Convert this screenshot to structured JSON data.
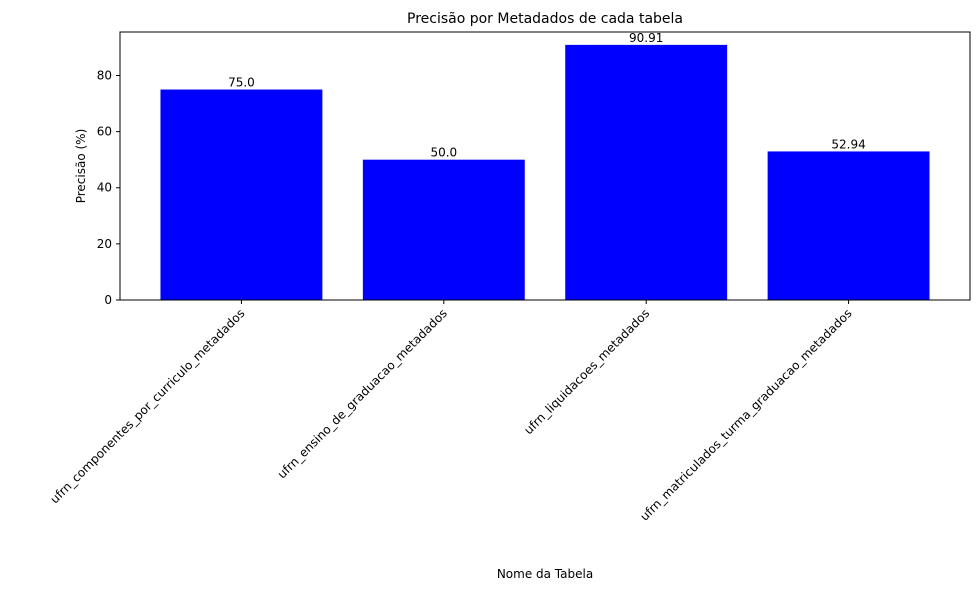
{
  "chart_data": {
    "type": "bar",
    "title": "Precisão por Metadados de cada tabela",
    "xlabel": "Nome da Tabela",
    "ylabel": "Precisão (%)",
    "categories": [
      "ufrn_componentes_por_curriculo_metadados",
      "ufrn_ensino_de_graduacao_metadados",
      "ufrn_liquidacoes_metadados",
      "ufrn_matriculados_turma_graduacao_metadados"
    ],
    "values": [
      75.0,
      50.0,
      90.91,
      52.94
    ],
    "value_labels": [
      "75.0",
      "50.0",
      "90.91",
      "52.94"
    ],
    "yticks": [
      0,
      20,
      40,
      60,
      80
    ],
    "ylim": [
      0,
      95.5
    ],
    "bar_color": "#0000ff",
    "grid": false,
    "legend": "none"
  }
}
